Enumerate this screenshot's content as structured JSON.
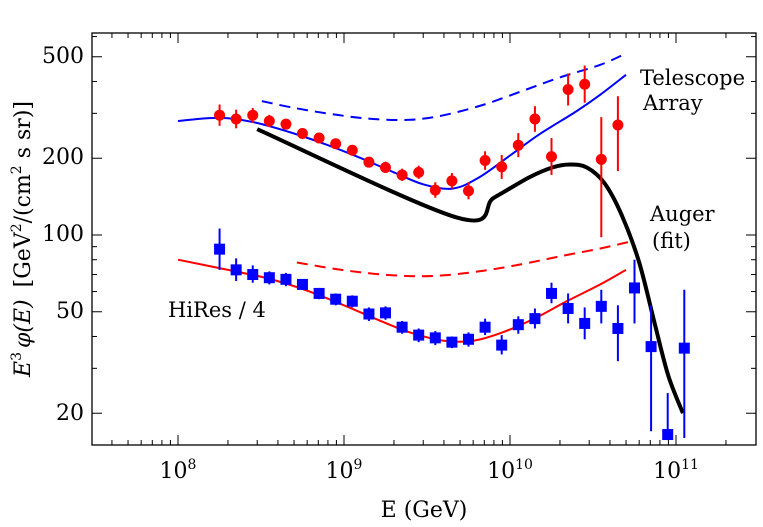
{
  "chart_data": {
    "type": "scatter",
    "title": "",
    "xlabel": "E  (GeV)",
    "ylabel_main": "E",
    "ylabel_sup": "3",
    "ylabel_phi": "φ(E)",
    "ylabel_units": "[GeV",
    "ylabel_units_sup": "2",
    "ylabel_units_mid": "/(cm",
    "ylabel_units_sup2": "2",
    "ylabel_units_end": " s sr)]",
    "x_scale": "log",
    "y_scale": "log",
    "xlim": [
      30000000,
      250000000000
    ],
    "ylim": [
      16,
      600
    ],
    "x_tick_base": "10",
    "x_ticks": [
      {
        "value": 100000000,
        "exp": "8"
      },
      {
        "value": 1000000000,
        "exp": "9"
      },
      {
        "value": 10000000000,
        "exp": "10"
      },
      {
        "value": 100000000000,
        "exp": "11"
      }
    ],
    "y_ticks": [
      {
        "value": 20,
        "label": "20"
      },
      {
        "value": 50,
        "label": "50"
      },
      {
        "value": 100,
        "label": "100"
      },
      {
        "value": 200,
        "label": "200"
      },
      {
        "value": 500,
        "label": "500"
      }
    ],
    "annotations": {
      "telescope_line1": "Telescope",
      "telescope_line2": "Array",
      "auger_line1": "Auger",
      "auger_line2": "(fit)",
      "hires": "HiRes / 4"
    },
    "series": [
      {
        "name": "Telescope Array data",
        "kind": "points",
        "marker": "circle",
        "color": "#ff0000",
        "points": [
          {
            "x": 178000000,
            "y": 295,
            "lo": 268,
            "hi": 325
          },
          {
            "x": 224000000,
            "y": 285,
            "lo": 262,
            "hi": 310
          },
          {
            "x": 282000000,
            "y": 295,
            "lo": 275,
            "hi": 315
          },
          {
            "x": 355000000,
            "y": 280,
            "lo": 265,
            "hi": 296
          },
          {
            "x": 447000000,
            "y": 272,
            "lo": 260,
            "hi": 285
          },
          {
            "x": 562000000,
            "y": 250,
            "lo": 240,
            "hi": 260
          },
          {
            "x": 708000000,
            "y": 240,
            "lo": 230,
            "hi": 250
          },
          {
            "x": 891000000,
            "y": 228,
            "lo": 218,
            "hi": 238
          },
          {
            "x": 1122000000,
            "y": 215,
            "lo": 205,
            "hi": 225
          },
          {
            "x": 1413000000,
            "y": 193,
            "lo": 184,
            "hi": 202
          },
          {
            "x": 1778000000,
            "y": 184,
            "lo": 175,
            "hi": 194
          },
          {
            "x": 2239000000,
            "y": 172,
            "lo": 163,
            "hi": 182
          },
          {
            "x": 2818000000,
            "y": 176,
            "lo": 166,
            "hi": 187
          },
          {
            "x": 3548000000,
            "y": 150,
            "lo": 140,
            "hi": 161
          },
          {
            "x": 4467000000,
            "y": 163,
            "lo": 152,
            "hi": 175
          },
          {
            "x": 5623000000,
            "y": 149,
            "lo": 138,
            "hi": 161
          },
          {
            "x": 7079000000,
            "y": 196,
            "lo": 180,
            "hi": 213
          },
          {
            "x": 8913000000,
            "y": 185,
            "lo": 166,
            "hi": 206
          },
          {
            "x": 11220000000,
            "y": 225,
            "lo": 202,
            "hi": 251
          },
          {
            "x": 14130000000,
            "y": 285,
            "lo": 254,
            "hi": 320
          },
          {
            "x": 17780000000,
            "y": 203,
            "lo": 172,
            "hi": 240
          },
          {
            "x": 22390000000,
            "y": 372,
            "lo": 322,
            "hi": 430
          },
          {
            "x": 28180000000,
            "y": 390,
            "lo": 330,
            "hi": 462
          },
          {
            "x": 35480000000,
            "y": 198,
            "lo": 98,
            "hi": 290
          },
          {
            "x": 44670000000,
            "y": 270,
            "lo": 178,
            "hi": 350
          }
        ]
      },
      {
        "name": "HiRes / 4 data",
        "kind": "points",
        "marker": "square",
        "color": "#0000ff",
        "points": [
          {
            "x": 178000000,
            "y": 88,
            "lo": 73,
            "hi": 106
          },
          {
            "x": 224000000,
            "y": 73,
            "lo": 66,
            "hi": 81
          },
          {
            "x": 282000000,
            "y": 70,
            "lo": 65,
            "hi": 76
          },
          {
            "x": 355000000,
            "y": 68,
            "lo": 64,
            "hi": 72
          },
          {
            "x": 447000000,
            "y": 67,
            "lo": 63,
            "hi": 71
          },
          {
            "x": 562000000,
            "y": 64,
            "lo": 61,
            "hi": 67
          },
          {
            "x": 708000000,
            "y": 59,
            "lo": 56,
            "hi": 62
          },
          {
            "x": 891000000,
            "y": 56,
            "lo": 53,
            "hi": 59
          },
          {
            "x": 1122000000,
            "y": 55,
            "lo": 52,
            "hi": 58
          },
          {
            "x": 1413000000,
            "y": 49,
            "lo": 46,
            "hi": 52
          },
          {
            "x": 1778000000,
            "y": 49.5,
            "lo": 46.5,
            "hi": 52.5
          },
          {
            "x": 2239000000,
            "y": 43.5,
            "lo": 41,
            "hi": 46
          },
          {
            "x": 2818000000,
            "y": 40.5,
            "lo": 38,
            "hi": 43
          },
          {
            "x": 3548000000,
            "y": 39.5,
            "lo": 37,
            "hi": 42
          },
          {
            "x": 4467000000,
            "y": 38,
            "lo": 36,
            "hi": 40
          },
          {
            "x": 5623000000,
            "y": 39,
            "lo": 36.5,
            "hi": 41.5
          },
          {
            "x": 7079000000,
            "y": 43.5,
            "lo": 40.5,
            "hi": 47
          },
          {
            "x": 8913000000,
            "y": 37,
            "lo": 34,
            "hi": 40.5
          },
          {
            "x": 11220000000,
            "y": 44.5,
            "lo": 41,
            "hi": 48
          },
          {
            "x": 14130000000,
            "y": 47,
            "lo": 43,
            "hi": 51.5
          },
          {
            "x": 17780000000,
            "y": 59,
            "lo": 54,
            "hi": 65
          },
          {
            "x": 22390000000,
            "y": 51.5,
            "lo": 45,
            "hi": 59
          },
          {
            "x": 28180000000,
            "y": 45,
            "lo": 39,
            "hi": 52
          },
          {
            "x": 35480000000,
            "y": 52.5,
            "lo": 45,
            "hi": 61
          },
          {
            "x": 44670000000,
            "y": 43,
            "lo": 32,
            "hi": 53
          },
          {
            "x": 56230000000,
            "y": 62,
            "lo": 45,
            "hi": 80
          },
          {
            "x": 70790000000,
            "y": 36.5,
            "lo": 17,
            "hi": 53
          },
          {
            "x": 89130000000,
            "y": 16.5,
            "lo": 16,
            "hi": 24
          },
          {
            "x": 112200000000,
            "y": 36,
            "lo": 16,
            "hi": 61
          }
        ]
      },
      {
        "name": "Telescope Array model",
        "kind": "line",
        "color": "#0000ff",
        "dash": false,
        "width": 2,
        "points": [
          {
            "x": 100000000,
            "y": 280
          },
          {
            "x": 150000000,
            "y": 287
          },
          {
            "x": 200000000,
            "y": 287
          },
          {
            "x": 300000000,
            "y": 275
          },
          {
            "x": 500000000,
            "y": 250
          },
          {
            "x": 800000000,
            "y": 225
          },
          {
            "x": 1200000000,
            "y": 203
          },
          {
            "x": 2000000000,
            "y": 176
          },
          {
            "x": 3000000000,
            "y": 158
          },
          {
            "x": 4500000000,
            "y": 152
          },
          {
            "x": 6500000000,
            "y": 168
          },
          {
            "x": 10000000000,
            "y": 205
          },
          {
            "x": 15000000000,
            "y": 248
          },
          {
            "x": 25000000000,
            "y": 305
          },
          {
            "x": 35000000000,
            "y": 355
          },
          {
            "x": 50000000000,
            "y": 425
          }
        ]
      },
      {
        "name": "Telescope Array model upper",
        "kind": "line",
        "color": "#0000ff",
        "dash": true,
        "width": 2,
        "points": [
          {
            "x": 320000000,
            "y": 335
          },
          {
            "x": 500000000,
            "y": 315
          },
          {
            "x": 900000000,
            "y": 296
          },
          {
            "x": 1500000000,
            "y": 285
          },
          {
            "x": 2500000000,
            "y": 283
          },
          {
            "x": 4000000000,
            "y": 295
          },
          {
            "x": 7000000000,
            "y": 325
          },
          {
            "x": 12000000000,
            "y": 368
          },
          {
            "x": 20000000000,
            "y": 415
          },
          {
            "x": 35000000000,
            "y": 465
          },
          {
            "x": 50000000000,
            "y": 515
          }
        ]
      },
      {
        "name": "HiRes model",
        "kind": "line",
        "color": "#ff0000",
        "dash": false,
        "width": 2,
        "points": [
          {
            "x": 100000000,
            "y": 80
          },
          {
            "x": 200000000,
            "y": 73
          },
          {
            "x": 350000000,
            "y": 67.5
          },
          {
            "x": 600000000,
            "y": 60.5
          },
          {
            "x": 1000000000,
            "y": 53
          },
          {
            "x": 1600000000,
            "y": 46.5
          },
          {
            "x": 2500000000,
            "y": 41.5
          },
          {
            "x": 4000000000,
            "y": 38.5
          },
          {
            "x": 6000000000,
            "y": 38.5
          },
          {
            "x": 9000000000,
            "y": 41.5
          },
          {
            "x": 14000000000,
            "y": 47
          },
          {
            "x": 22000000000,
            "y": 55
          },
          {
            "x": 35000000000,
            "y": 64
          },
          {
            "x": 50000000000,
            "y": 73
          }
        ]
      },
      {
        "name": "HiRes model upper",
        "kind": "line",
        "color": "#ff0000",
        "dash": true,
        "width": 2,
        "points": [
          {
            "x": 520000000,
            "y": 78
          },
          {
            "x": 900000000,
            "y": 73.5
          },
          {
            "x": 1500000000,
            "y": 70.5
          },
          {
            "x": 2500000000,
            "y": 69
          },
          {
            "x": 4000000000,
            "y": 69.5
          },
          {
            "x": 7000000000,
            "y": 72.5
          },
          {
            "x": 12000000000,
            "y": 77
          },
          {
            "x": 20000000000,
            "y": 82.5
          },
          {
            "x": 35000000000,
            "y": 88.5
          },
          {
            "x": 52000000000,
            "y": 94
          }
        ]
      },
      {
        "name": "Auger fit",
        "kind": "line",
        "color": "#000000",
        "dash": false,
        "width": 4,
        "points": [
          {
            "x": 300000000,
            "y": 260
          },
          {
            "x": 4800000000,
            "y": 117
          },
          {
            "x": 8000000000,
            "y": 140
          },
          {
            "x": 13000000000,
            "y": 168
          },
          {
            "x": 18000000000,
            "y": 184
          },
          {
            "x": 23000000000,
            "y": 189
          },
          {
            "x": 29000000000,
            "y": 184
          },
          {
            "x": 37000000000,
            "y": 160
          },
          {
            "x": 47000000000,
            "y": 120
          },
          {
            "x": 60000000000,
            "y": 78
          },
          {
            "x": 75000000000,
            "y": 44
          },
          {
            "x": 90000000000,
            "y": 28
          },
          {
            "x": 110000000000,
            "y": 20
          }
        ]
      }
    ]
  }
}
